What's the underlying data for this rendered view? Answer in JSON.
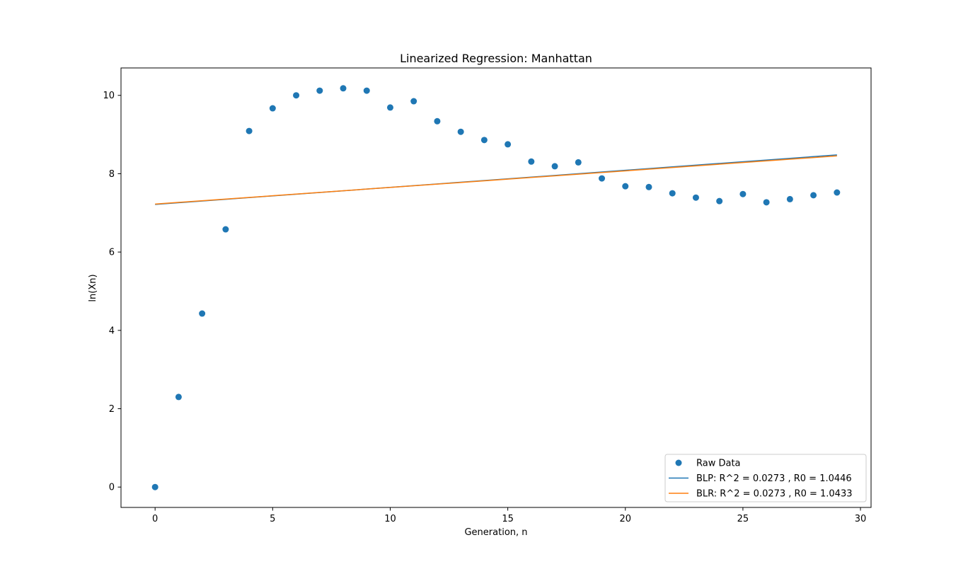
{
  "chart_data": {
    "type": "scatter",
    "title": "Linearized Regression: Manhattan",
    "xlabel": "Generation, n",
    "ylabel": "ln(Xn)",
    "xlim": [
      -1.45,
      30.45
    ],
    "ylim": [
      -0.52,
      10.7
    ],
    "x_ticks": [
      0,
      5,
      10,
      15,
      20,
      25,
      30
    ],
    "y_ticks": [
      0,
      2,
      4,
      6,
      8,
      10
    ],
    "grid": false,
    "legend_position": "lower-right",
    "series": [
      {
        "name": "Raw Data",
        "kind": "scatter",
        "color": "#1f77b4",
        "x": [
          0,
          1,
          2,
          3,
          4,
          5,
          6,
          7,
          8,
          9,
          10,
          11,
          12,
          13,
          14,
          15,
          16,
          17,
          18,
          19,
          20,
          21,
          22,
          23,
          24,
          25,
          26,
          27,
          28,
          29
        ],
        "y": [
          0.0,
          2.3,
          4.43,
          6.58,
          9.09,
          9.67,
          10.0,
          10.12,
          10.18,
          10.12,
          9.69,
          9.85,
          9.34,
          9.07,
          8.86,
          8.75,
          8.31,
          8.19,
          8.29,
          7.88,
          7.68,
          7.66,
          7.5,
          7.39,
          7.3,
          7.48,
          7.27,
          7.35,
          7.45,
          7.52
        ]
      },
      {
        "name": "BLP: R^2 = 0.0273 , R0 = 1.0446",
        "kind": "line",
        "color": "#1f77b4",
        "x": [
          0,
          29
        ],
        "y": [
          7.215,
          8.48
        ]
      },
      {
        "name": "BLR: R^2 = 0.0273 , R0 = 1.0433",
        "kind": "line",
        "color": "#ff7f0e",
        "x": [
          0,
          29
        ],
        "y": [
          7.225,
          8.455
        ]
      }
    ]
  }
}
